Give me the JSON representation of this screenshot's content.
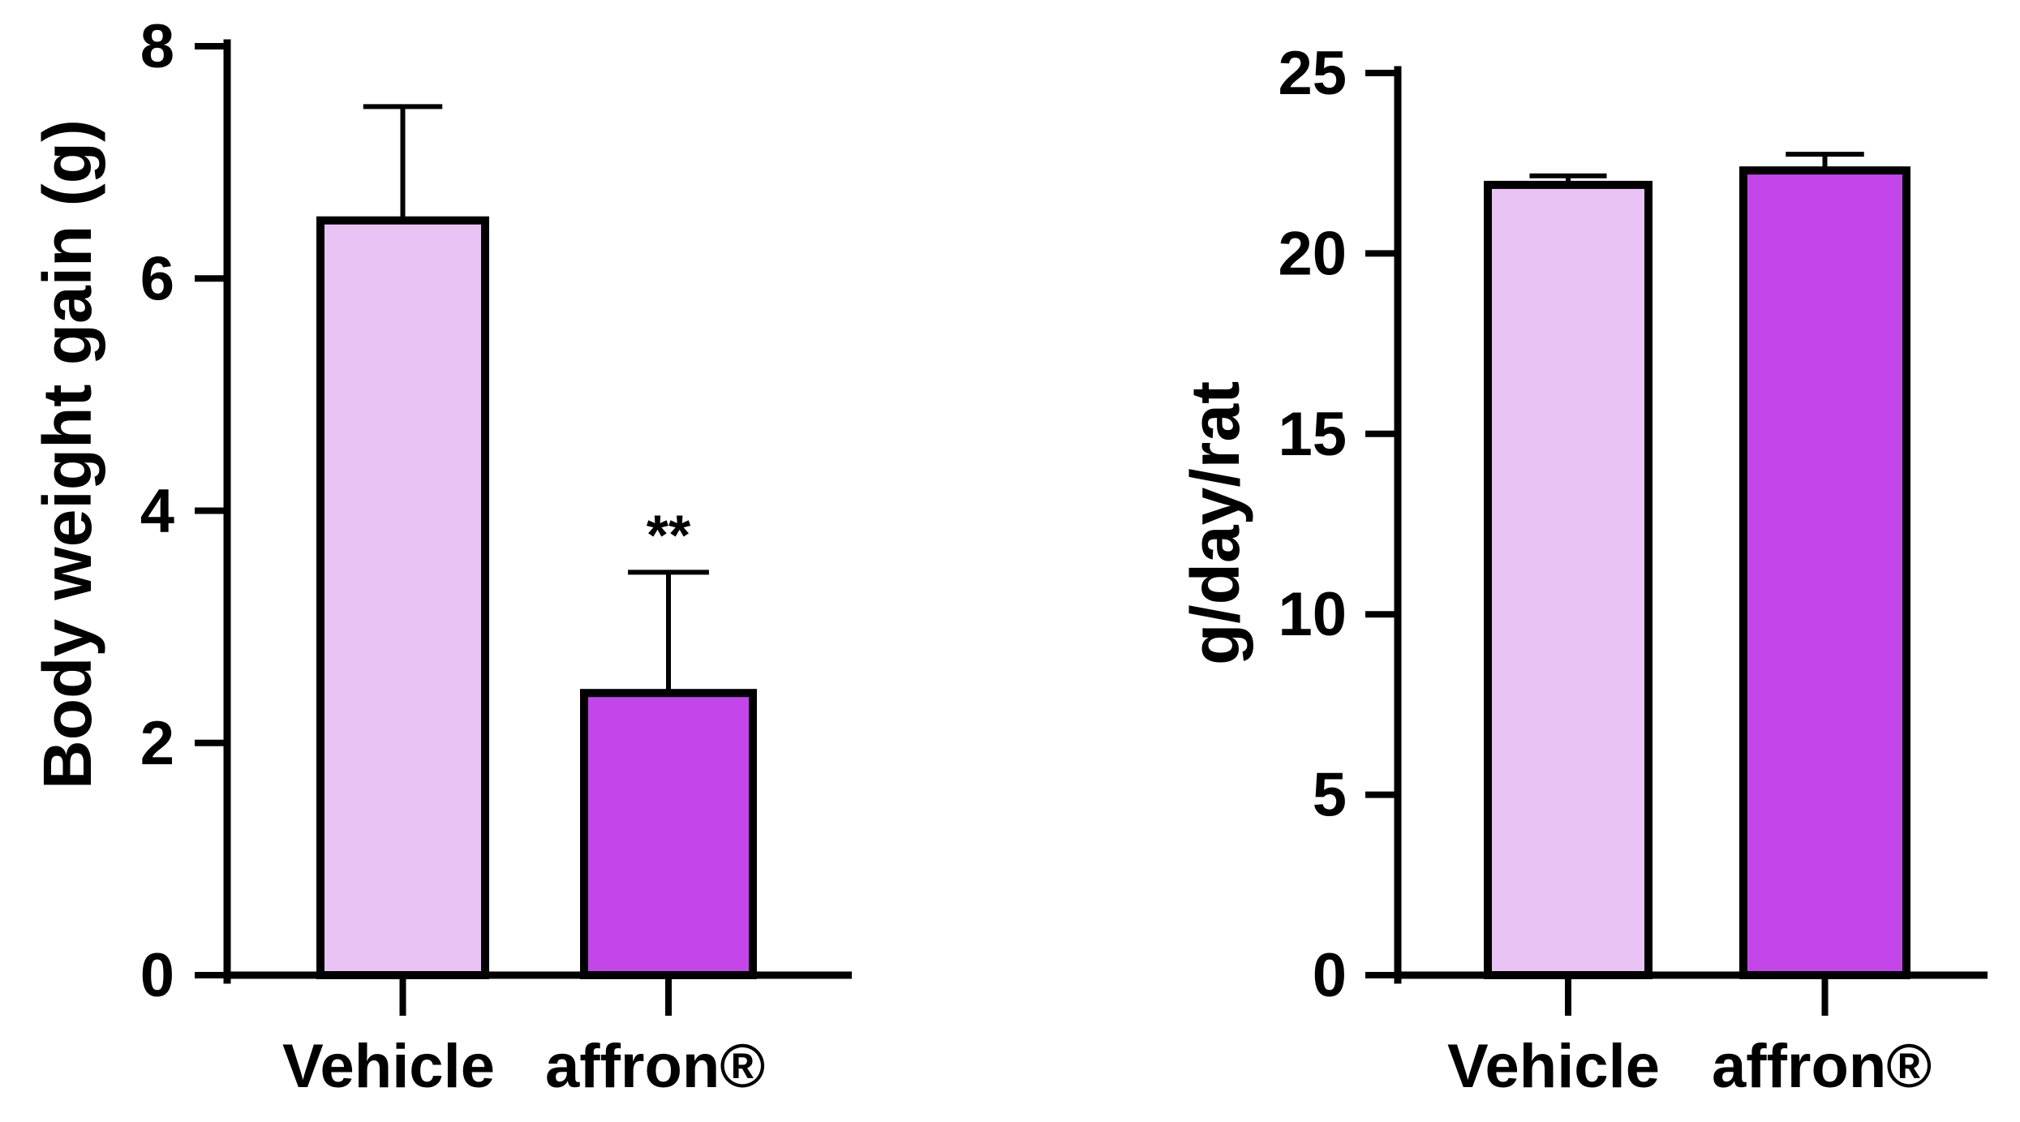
{
  "chart_data": [
    {
      "type": "bar",
      "categories": [
        "Vehicle",
        "affron®"
      ],
      "values": [
        6.5,
        2.43
      ],
      "error_upper": [
        7.48,
        3.47
      ],
      "annotations": [
        "",
        "**"
      ],
      "ylabel": "Body weight gain (g)",
      "xlabel": "",
      "ylim": [
        0,
        8
      ],
      "yticks": [
        0,
        2,
        4,
        6,
        8
      ],
      "ytick_labels": [
        "0",
        "2",
        "4",
        "6",
        "8"
      ],
      "colors": [
        "#EAC3F5",
        "#C347E8"
      ],
      "edge_color": "#000000",
      "grid": false
    },
    {
      "type": "bar",
      "categories": [
        "Vehicle",
        "affron®"
      ],
      "values": [
        21.9,
        22.3
      ],
      "error_upper": [
        22.15,
        22.75
      ],
      "annotations": [
        "",
        ""
      ],
      "ylabel": "g/day/rat",
      "xlabel": "",
      "ylim": [
        0,
        25
      ],
      "yticks": [
        0,
        5,
        10,
        15,
        20,
        25
      ],
      "ytick_labels": [
        "0",
        "5",
        "10",
        "15",
        "20",
        "25"
      ],
      "colors": [
        "#EAC3F5",
        "#C347E8"
      ],
      "edge_color": "#000000",
      "grid": false
    }
  ]
}
